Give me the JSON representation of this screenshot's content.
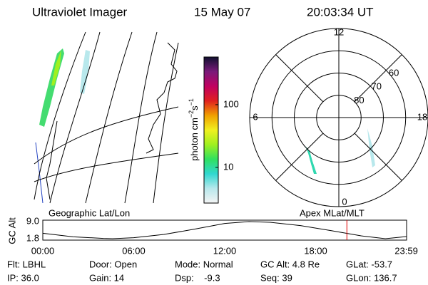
{
  "header": {
    "title": "Ultraviolet Imager",
    "date": "15 May 07",
    "time": "20:03:34 UT"
  },
  "colorbar": {
    "label_parts": [
      "photon cm",
      "−2",
      "s",
      "−1"
    ],
    "log": true,
    "clim": [
      2.7,
      575
    ],
    "ticks": [
      10,
      100
    ],
    "colors": [
      "#f4f4f4",
      "#b8e8ec",
      "#30d8d0",
      "#30e060",
      "#a0f020",
      "#f0f020",
      "#f0a000",
      "#e02020",
      "#c00060",
      "#7a1a7a",
      "#101030"
    ]
  },
  "polar": {
    "rlim": [
      90,
      50
    ],
    "rings": [
      80,
      70,
      60
    ],
    "mlt_ticks": [
      12,
      6,
      0,
      18
    ]
  },
  "map_label": "Geographic Lat/Lon",
  "polar_label": "Apex MLat/MLT",
  "altitude": {
    "ylabel": "GC Alt",
    "ylim": [
      1.8,
      9.0
    ],
    "yticks": [
      {
        "value": 9,
        "label": "9.0"
      },
      1.8
    ],
    "xlim": [
      0,
      24
    ],
    "xticks": [
      {
        "value": 0,
        "label": "00:00"
      },
      {
        "value": 6,
        "label": "06:00"
      },
      {
        "value": 12,
        "label": "12:00"
      },
      {
        "value": 18,
        "label": "18:00"
      },
      {
        "value": 23.98,
        "label": "23:59"
      }
    ],
    "x": [
      0,
      2,
      4,
      4.6,
      6,
      8,
      10,
      12,
      13.6,
      15,
      17,
      19,
      21,
      22.6,
      24
    ],
    "values": [
      4.1,
      2.6,
      1.9,
      1.8,
      2.2,
      3.6,
      5.8,
      8.2,
      9.0,
      8.7,
      7.3,
      5.2,
      3.0,
      1.8,
      2.7
    ],
    "marker": 20.06,
    "marker_color": "#e00000"
  },
  "status": {
    "rows": [
      [
        "Flt: LBHL",
        "Door: Open",
        "Mode: Normal",
        "GC Alt: 4.8 Re",
        "GLat: -53.7"
      ],
      [
        "IP: 36.0",
        "Gain: 14",
        "Dsp:    -9.3",
        "Seq: 39",
        "GLon: 136.7"
      ]
    ]
  }
}
